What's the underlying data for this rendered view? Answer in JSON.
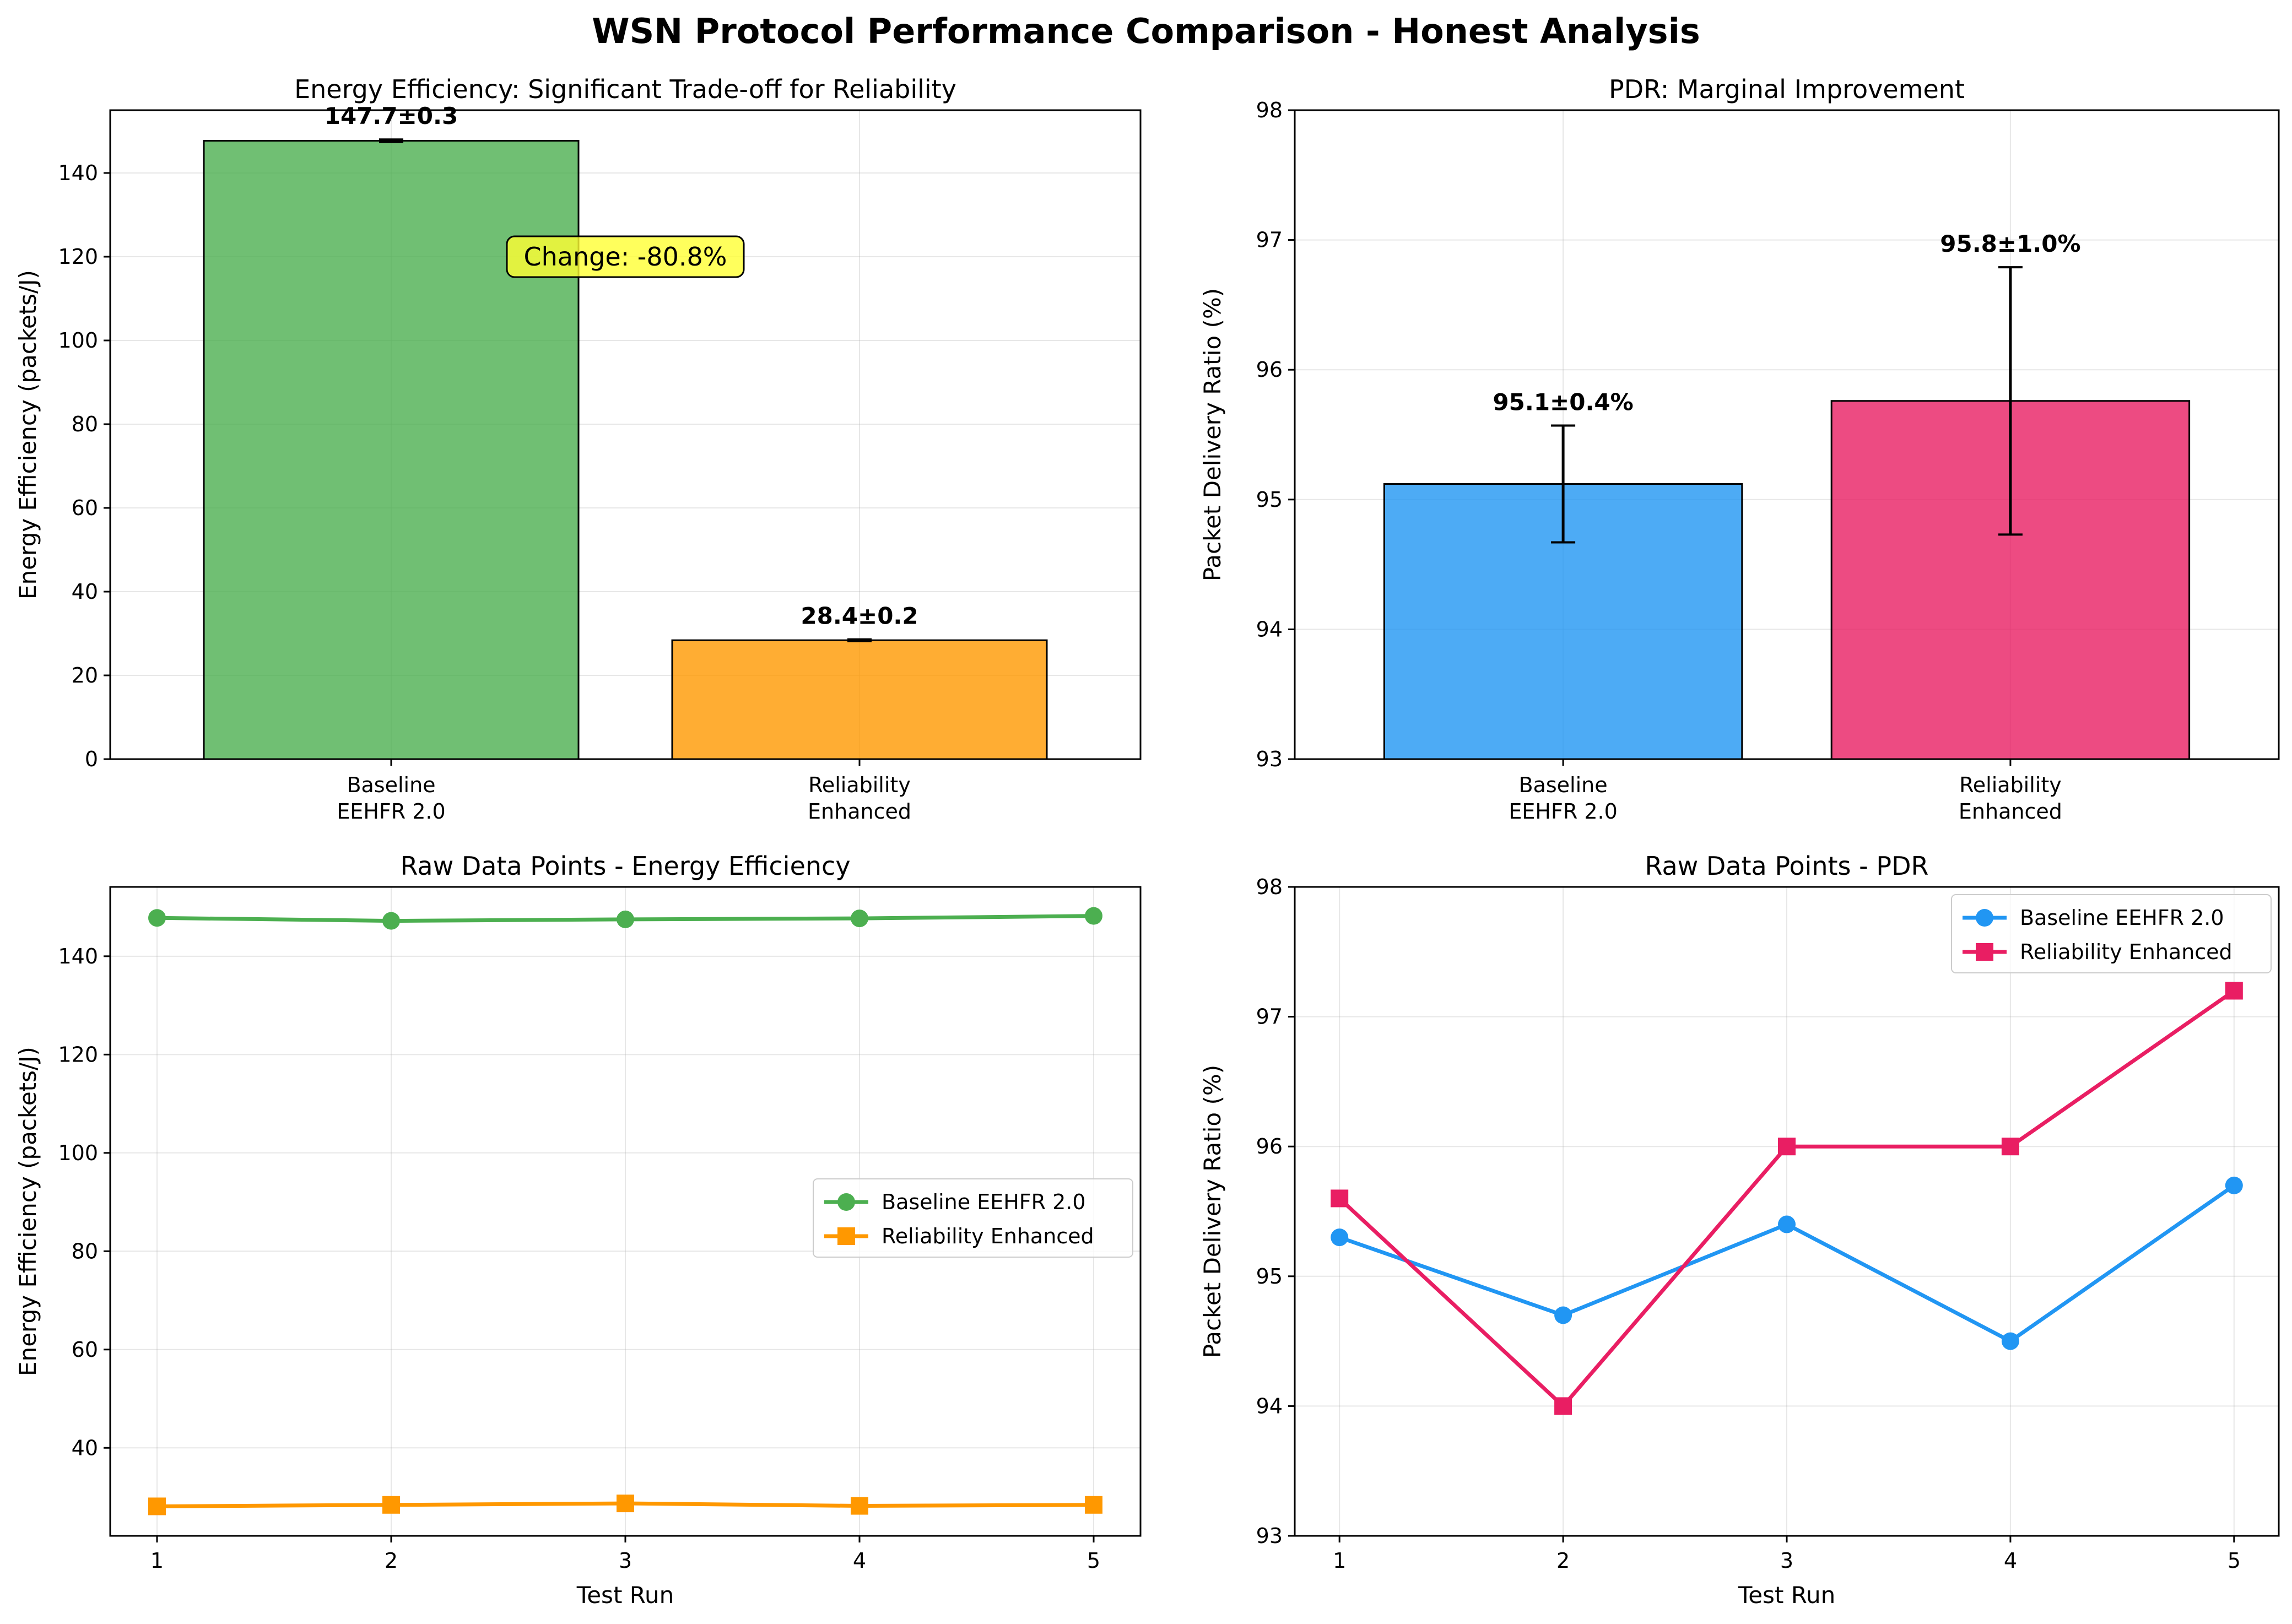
{
  "suptitle": "WSN Protocol Performance Comparison - Honest Analysis",
  "colors": {
    "baseline_green": "#4caf50",
    "enhanced_orange": "#ff9800",
    "baseline_blue": "#2196f3",
    "enhanced_pink": "#e91e63",
    "annotation_fill": "#ffff33"
  },
  "chart_data": [
    {
      "id": "energy-bar",
      "type": "bar",
      "title": "Energy Efficiency: Significant Trade-off for Reliability",
      "xlabel": "",
      "ylabel": "Energy Efficiency (packets/J)",
      "categories": [
        "Baseline\nEEHFR 2.0",
        "Reliability\nEnhanced"
      ],
      "values": [
        147.7,
        28.4
      ],
      "errors": [
        0.3,
        0.2
      ],
      "value_labels": [
        "147.7±0.3",
        "28.4±0.2"
      ],
      "bar_colors": [
        "#4caf50",
        "#ff9800"
      ],
      "ylim": [
        0,
        155
      ],
      "yticks": [
        0,
        20,
        40,
        60,
        80,
        100,
        120,
        140
      ],
      "grid": true,
      "annotation": "Change: -80.8%"
    },
    {
      "id": "pdr-bar",
      "type": "bar",
      "title": "PDR: Marginal Improvement",
      "xlabel": "",
      "ylabel": "Packet Delivery Ratio (%)",
      "categories": [
        "Baseline\nEEHFR 2.0",
        "Reliability\nEnhanced"
      ],
      "values": [
        95.12,
        95.76
      ],
      "errors": [
        0.45,
        1.03
      ],
      "value_labels": [
        "95.1±0.4%",
        "95.8±1.0%"
      ],
      "bar_colors": [
        "#2196f3",
        "#e91e63"
      ],
      "ylim": [
        93,
        98
      ],
      "yticks": [
        93,
        94,
        95,
        96,
        97,
        98
      ],
      "grid": true
    },
    {
      "id": "energy-line",
      "type": "line",
      "title": "Raw Data Points - Energy Efficiency",
      "xlabel": "Test Run",
      "ylabel": "Energy Efficiency (packets/J)",
      "x": [
        1,
        2,
        3,
        4,
        5
      ],
      "series": [
        {
          "name": "Baseline EEHFR 2.0",
          "values": [
            147.8,
            147.2,
            147.5,
            147.7,
            148.2
          ],
          "color": "#4caf50",
          "marker": "circle"
        },
        {
          "name": "Reliability Enhanced",
          "values": [
            28.1,
            28.4,
            28.7,
            28.2,
            28.4
          ],
          "color": "#ff9800",
          "marker": "square"
        }
      ],
      "xlim": [
        0.8,
        5.2
      ],
      "ylim": [
        22.1,
        154.1
      ],
      "xticks": [
        1,
        2,
        3,
        4,
        5
      ],
      "yticks": [
        40,
        60,
        80,
        100,
        120,
        140
      ],
      "grid": true,
      "legend_position": "center-right"
    },
    {
      "id": "pdr-line",
      "type": "line",
      "title": "Raw Data Points - PDR",
      "xlabel": "Test Run",
      "ylabel": "Packet Delivery Ratio (%)",
      "x": [
        1,
        2,
        3,
        4,
        5
      ],
      "series": [
        {
          "name": "Baseline EEHFR 2.0",
          "values": [
            95.3,
            94.7,
            95.4,
            94.5,
            95.7
          ],
          "color": "#2196f3",
          "marker": "circle"
        },
        {
          "name": "Reliability Enhanced",
          "values": [
            95.6,
            94.0,
            96.0,
            96.0,
            97.2
          ],
          "color": "#e91e63",
          "marker": "square"
        }
      ],
      "xlim": [
        0.8,
        5.2
      ],
      "ylim": [
        93,
        98
      ],
      "xticks": [
        1,
        2,
        3,
        4,
        5
      ],
      "yticks": [
        93,
        94,
        95,
        96,
        97,
        98
      ],
      "grid": true,
      "legend_position": "upper-right"
    }
  ]
}
